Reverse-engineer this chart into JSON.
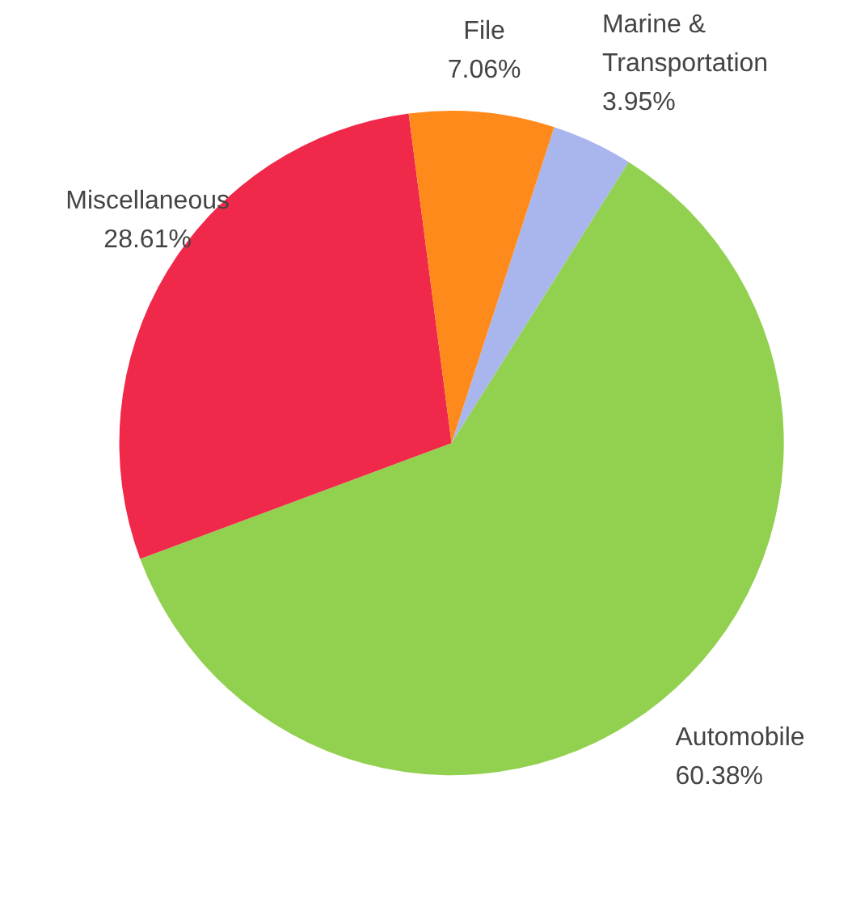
{
  "chart_data": {
    "type": "pie",
    "categories": [
      "Marine & Transportation",
      "Automobile",
      "Miscellaneous",
      "File"
    ],
    "values": [
      3.95,
      60.38,
      28.61,
      7.06
    ],
    "colors": [
      "#a9b6ee",
      "#92d050",
      "#f0284a",
      "#ff8a1c"
    ],
    "value_labels": [
      "3.95%",
      "60.38%",
      "28.61%",
      "7.06%"
    ]
  }
}
